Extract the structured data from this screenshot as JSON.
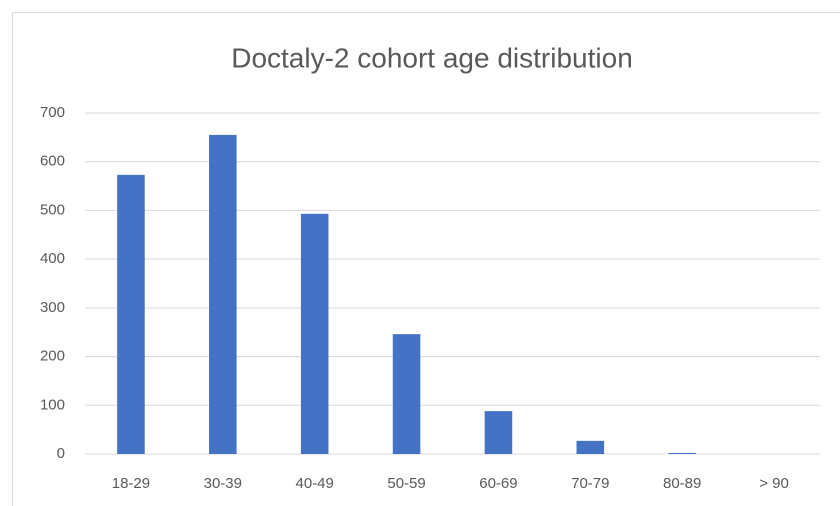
{
  "chart_data": {
    "type": "bar",
    "title": "Doctaly-2 cohort age distribution",
    "categories": [
      "18-29",
      "30-39",
      "40-49",
      "50-59",
      "60-69",
      "70-79",
      "80-89",
      "> 90"
    ],
    "values": [
      573,
      655,
      493,
      246,
      88,
      27,
      2,
      0
    ],
    "color": "#4472c4",
    "ylim": [
      0,
      700
    ],
    "yticks": [
      0,
      100,
      200,
      300,
      400,
      500,
      600,
      700
    ],
    "grid": true
  }
}
